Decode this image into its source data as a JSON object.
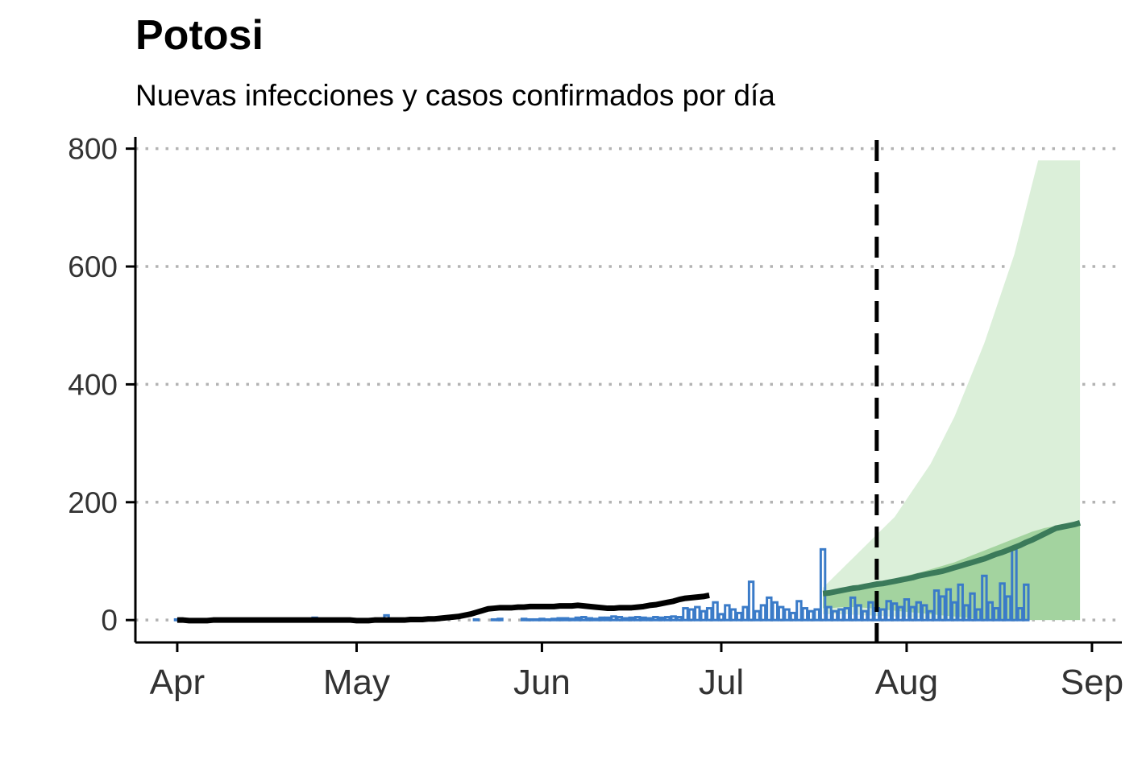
{
  "title": "Potosi",
  "subtitle": "Nuevas infecciones y casos confirmados por día",
  "chart_data": {
    "type": "bar",
    "title": "Potosi",
    "subtitle": "Nuevas infecciones y casos confirmados por día",
    "xlabel": "",
    "ylabel": "",
    "ylim": [
      -38,
      820
    ],
    "yticks": [
      0,
      200,
      400,
      600,
      800
    ],
    "xticks": [
      {
        "date": "2020-04-01",
        "label": "Apr"
      },
      {
        "date": "2020-05-01",
        "label": "May"
      },
      {
        "date": "2020-06-01",
        "label": "Jun"
      },
      {
        "date": "2020-07-01",
        "label": "Jul"
      },
      {
        "date": "2020-08-01",
        "label": "Aug"
      },
      {
        "date": "2020-09-01",
        "label": "Sep"
      }
    ],
    "xlim": [
      "2020-03-25",
      "2020-09-06"
    ],
    "grid": "horizontal dotted",
    "cutoff_date": "2020-07-27",
    "colors": {
      "bars": "#3a7bc8",
      "estimate": "#000000",
      "forecast_line": "#3b7a5a",
      "band_outer": "#dbefd9",
      "band_inner": "#a3d39f"
    },
    "confirmed_cases": {
      "start": "2020-04-01",
      "values": [
        1,
        0,
        0,
        0,
        0,
        0,
        0,
        0,
        0,
        0,
        0,
        0,
        0,
        0,
        0,
        0,
        0,
        0,
        0,
        0,
        0,
        0,
        0,
        4,
        0,
        0,
        0,
        0,
        0,
        0,
        0,
        0,
        0,
        0,
        0,
        8,
        0,
        0,
        0,
        0,
        0,
        0,
        0,
        0,
        0,
        0,
        0,
        0,
        0,
        0,
        1,
        0,
        0,
        1,
        2,
        0,
        0,
        0,
        2,
        1,
        1,
        2,
        1,
        2,
        3,
        3,
        2,
        4,
        5,
        3,
        2,
        4,
        4,
        6,
        5,
        3,
        4,
        5,
        4,
        3,
        5,
        4,
        5,
        6,
        5,
        20,
        18,
        22,
        15,
        20,
        30,
        10,
        25,
        18,
        12,
        22,
        65,
        15,
        25,
        38,
        30,
        22,
        18,
        12,
        32,
        20,
        15,
        18,
        120,
        22,
        15,
        18,
        20,
        38,
        25,
        15,
        30,
        20,
        18,
        32,
        28,
        22,
        35,
        22,
        30,
        25,
        15,
        50,
        40,
        52,
        30,
        60,
        25,
        45,
        18,
        75,
        30,
        20,
        62,
        40,
        120,
        20,
        60,
        0
      ]
    },
    "estimate": {
      "start": "2020-04-01",
      "values": [
        0,
        0,
        -1,
        -1,
        -1,
        -1,
        0,
        0,
        0,
        0,
        0,
        0,
        0,
        0,
        0,
        0,
        0,
        0,
        0,
        0,
        0,
        0,
        0,
        0,
        0,
        0,
        0,
        0,
        0,
        0,
        -1,
        -1,
        -1,
        0,
        0,
        0,
        0,
        0,
        0,
        1,
        1,
        1,
        2,
        2,
        3,
        4,
        5,
        6,
        8,
        10,
        13,
        16,
        19,
        20,
        21,
        21,
        21,
        22,
        22,
        23,
        23,
        23,
        23,
        23,
        24,
        24,
        24,
        25,
        24,
        23,
        22,
        21,
        20,
        20,
        21,
        21,
        21,
        22,
        23,
        25,
        26,
        28,
        30,
        32,
        35,
        37,
        38,
        39,
        40,
        42
      ]
    },
    "forecast": {
      "start": "2020-07-18",
      "median": [
        45,
        46,
        48,
        50,
        52,
        54,
        55,
        57,
        59,
        61,
        62,
        64,
        66,
        68,
        70,
        72,
        75,
        77,
        79,
        81,
        83,
        86,
        89,
        92,
        95,
        98,
        101,
        104,
        108,
        112,
        115,
        119,
        123,
        127,
        132,
        136,
        141,
        146,
        151,
        156,
        158,
        160,
        162,
        165
      ],
      "inner_lower": [
        20,
        20,
        21,
        22,
        22,
        22,
        22,
        21,
        20,
        19,
        18,
        17,
        16,
        15,
        14,
        13,
        12,
        11,
        10,
        9,
        8,
        7,
        6,
        5,
        4,
        3,
        2,
        1,
        0,
        0,
        0,
        0,
        0,
        0,
        0,
        0,
        0,
        0,
        0,
        0,
        0,
        0,
        0,
        0
      ],
      "inner_upper": [
        45,
        47,
        49,
        51,
        53,
        56,
        58,
        60,
        62,
        64,
        66,
        68,
        70,
        73,
        75,
        78,
        80,
        83,
        86,
        89,
        92,
        95,
        98,
        102,
        106,
        110,
        114,
        118,
        122,
        126,
        130,
        134,
        138,
        142,
        146,
        150,
        153,
        156,
        158,
        160,
        161,
        162,
        163,
        164
      ],
      "outer_lower": [
        10,
        10,
        10,
        10,
        10,
        9,
        9,
        8,
        8,
        7,
        7,
        6,
        6,
        5,
        5,
        4,
        4,
        3,
        3,
        2,
        2,
        1,
        1,
        0,
        0,
        0,
        0,
        0,
        0,
        0,
        0,
        0,
        0,
        0,
        0,
        0,
        0,
        0,
        0,
        0,
        0,
        0,
        0,
        0
      ],
      "outer_upper": [
        55,
        65,
        75,
        85,
        95,
        105,
        115,
        125,
        135,
        145,
        155,
        165,
        175,
        190,
        205,
        220,
        235,
        250,
        265,
        285,
        305,
        325,
        345,
        370,
        395,
        420,
        445,
        470,
        500,
        530,
        560,
        590,
        620,
        660,
        700,
        740,
        780,
        780,
        780,
        780,
        780,
        780,
        780,
        780
      ]
    }
  }
}
